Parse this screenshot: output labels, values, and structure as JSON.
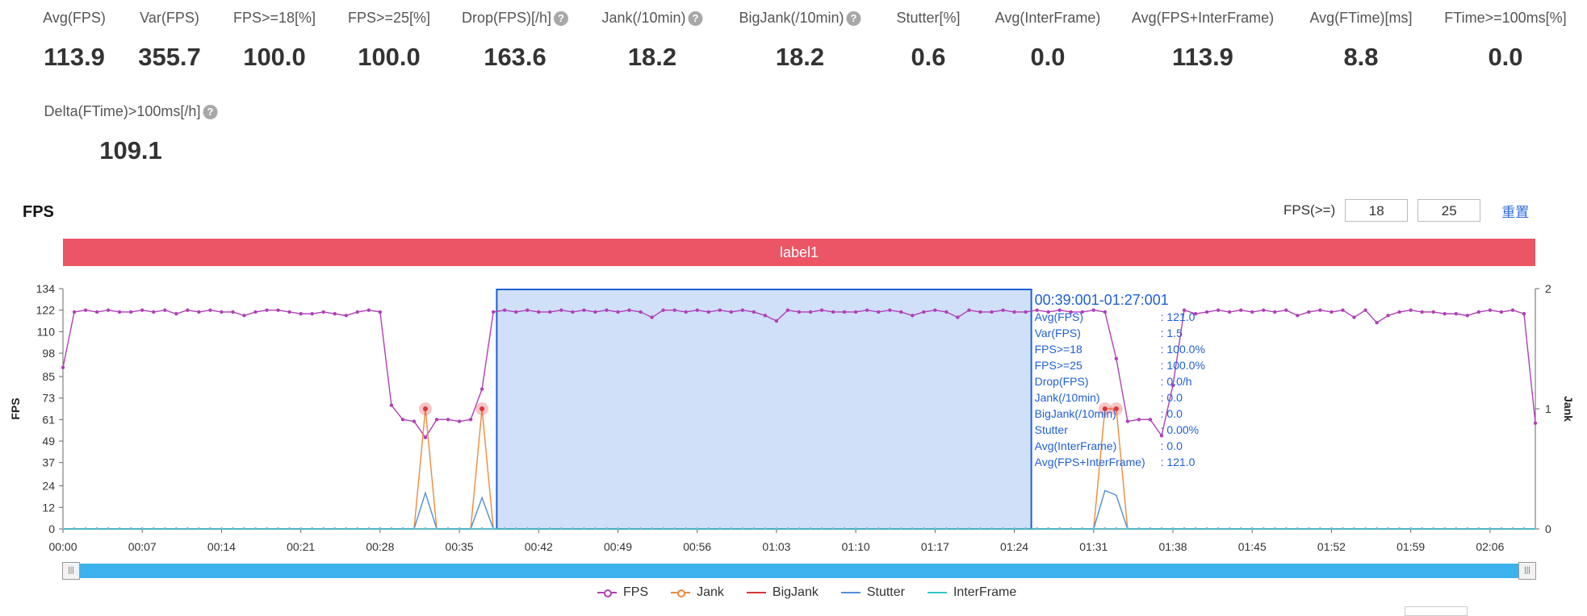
{
  "stats": [
    {
      "label": "Avg(FPS)",
      "value": "113.9",
      "help": false
    },
    {
      "label": "Var(FPS)",
      "value": "355.7",
      "help": false
    },
    {
      "label": "FPS>=18[%]",
      "value": "100.0",
      "help": false
    },
    {
      "label": "FPS>=25[%]",
      "value": "100.0",
      "help": false
    },
    {
      "label": "Drop(FPS)[/h]",
      "value": "163.6",
      "help": true
    },
    {
      "label": "Jank(/10min)",
      "value": "18.2",
      "help": true
    },
    {
      "label": "BigJank(/10min)",
      "value": "18.2",
      "help": true
    },
    {
      "label": "Stutter[%]",
      "value": "0.6",
      "help": false
    },
    {
      "label": "Avg(InterFrame)",
      "value": "0.0",
      "help": false
    },
    {
      "label": "Avg(FPS+InterFrame)",
      "value": "113.9",
      "help": false
    },
    {
      "label": "Avg(FTime)[ms]",
      "value": "8.8",
      "help": false
    },
    {
      "label": "FTime>=100ms[%]",
      "value": "0.0",
      "help": false
    },
    {
      "label": "Delta(FTime)>100ms[/h]",
      "value": "109.1",
      "help": true
    }
  ],
  "section_title": "FPS",
  "fps_threshold": {
    "label": "FPS(>=)",
    "value1": "18",
    "value2": "25",
    "reset": "重置"
  },
  "label_bar": "label1",
  "help_glyph": "?",
  "handle_glyph": "|||",
  "legend": [
    {
      "name": "FPS",
      "color": "#b040b8",
      "marker": "dot"
    },
    {
      "name": "Jank",
      "color": "#ee8a3a",
      "marker": "dot"
    },
    {
      "name": "BigJank",
      "color": "#d8363a",
      "marker": "line"
    },
    {
      "name": "Stutter",
      "color": "#4f8ed8",
      "marker": "line"
    },
    {
      "name": "InterFrame",
      "color": "#33c6c8",
      "marker": "line"
    }
  ],
  "chart_data": {
    "type": "line",
    "ylabel": "FPS",
    "y2label": "Jank",
    "ylim": [
      0,
      134
    ],
    "yticks": [
      0,
      12,
      24,
      37,
      49,
      61,
      73,
      85,
      98,
      110,
      122,
      134
    ],
    "y2lim": [
      0,
      2
    ],
    "y2ticks": [
      0,
      1,
      2
    ],
    "xlim": [
      0,
      130
    ],
    "xticks": [
      "00:00",
      "00:07",
      "00:14",
      "00:21",
      "00:28",
      "00:35",
      "00:42",
      "00:49",
      "00:56",
      "01:03",
      "01:10",
      "01:17",
      "01:24",
      "01:31",
      "01:38",
      "01:45",
      "01:52",
      "01:59",
      "02:06"
    ],
    "xtick_step_seconds": 7,
    "series": [
      {
        "name": "FPS",
        "axis": "left",
        "color": "#b040b8",
        "x": [
          0,
          1,
          2,
          3,
          4,
          5,
          6,
          7,
          8,
          9,
          10,
          11,
          12,
          13,
          14,
          15,
          16,
          17,
          18,
          19,
          20,
          21,
          22,
          23,
          24,
          25,
          26,
          27,
          28,
          29,
          30,
          31,
          32,
          33,
          34,
          35,
          36,
          37,
          38,
          39,
          40,
          41,
          42,
          43,
          44,
          45,
          46,
          47,
          48,
          49,
          50,
          51,
          52,
          53,
          54,
          55,
          56,
          57,
          58,
          59,
          60,
          61,
          62,
          63,
          64,
          65,
          66,
          67,
          68,
          69,
          70,
          71,
          72,
          73,
          74,
          75,
          76,
          77,
          78,
          79,
          80,
          81,
          82,
          83,
          84,
          85,
          86,
          87,
          88,
          89,
          90,
          91,
          92,
          93,
          94,
          95,
          96,
          97,
          98,
          99,
          100,
          101,
          102,
          103,
          104,
          105,
          106,
          107,
          108,
          109,
          110,
          111,
          112,
          113,
          114,
          115,
          116,
          117,
          118,
          119,
          120,
          121,
          122,
          123,
          124,
          125,
          126,
          127,
          128,
          129,
          130
        ],
        "y": [
          90,
          121,
          122,
          121,
          122,
          121,
          121,
          122,
          121,
          122,
          120,
          122,
          121,
          122,
          121,
          121,
          119,
          121,
          122,
          122,
          121,
          120,
          120,
          121,
          120,
          119,
          121,
          122,
          121,
          69,
          61,
          60,
          51,
          61,
          61,
          60,
          61,
          78,
          121,
          122,
          121,
          122,
          121,
          121,
          122,
          121,
          122,
          121,
          122,
          121,
          122,
          121,
          118,
          122,
          122,
          121,
          122,
          121,
          122,
          121,
          122,
          121,
          119,
          116,
          122,
          121,
          121,
          122,
          121,
          121,
          121,
          122,
          121,
          122,
          121,
          119,
          121,
          122,
          121,
          118,
          122,
          121,
          121,
          122,
          121,
          121,
          122,
          121,
          122,
          121,
          121,
          122,
          121,
          95,
          60,
          61,
          61,
          52,
          80,
          122,
          120,
          121,
          122,
          121,
          122,
          121,
          122,
          121,
          122,
          119,
          121,
          122,
          121,
          122,
          118,
          122,
          115,
          119,
          121,
          122,
          121,
          121,
          120,
          120,
          119,
          121,
          122,
          121,
          122,
          120,
          59
        ]
      },
      {
        "name": "Jank",
        "axis": "right",
        "color": "#ee8a3a",
        "x": [
          0,
          31,
          32,
          33,
          36,
          37,
          38,
          91,
          92,
          93,
          94,
          130
        ],
        "y": [
          0,
          0,
          1,
          0,
          0,
          1,
          0,
          0,
          1,
          1,
          0,
          0
        ],
        "highlight_x": [
          32,
          37,
          92,
          93
        ]
      },
      {
        "name": "BigJank",
        "axis": "right",
        "color": "#d8363a",
        "x": [
          0,
          130
        ],
        "y": [
          0,
          0
        ]
      },
      {
        "name": "Stutter",
        "axis": "right",
        "color": "#4f8ed8",
        "x": [
          0,
          31,
          32,
          33,
          36,
          37,
          38,
          91,
          92,
          93,
          94,
          130
        ],
        "y": [
          0,
          0,
          0.3,
          0,
          0,
          0.26,
          0,
          0,
          0.32,
          0.28,
          0,
          0
        ]
      },
      {
        "name": "InterFrame",
        "axis": "right",
        "color": "#33c6c8",
        "x": [
          0,
          130
        ],
        "y": [
          0,
          0
        ]
      }
    ],
    "selection": {
      "x0": 38.3,
      "x1": 85.5
    },
    "tooltip": {
      "title": "00:39:001-01:27:001",
      "rows": [
        [
          "Avg(FPS)",
          ": 121.0"
        ],
        [
          "Var(FPS)",
          ": 1.5"
        ],
        [
          "FPS>=18",
          ": 100.0%"
        ],
        [
          "FPS>=25",
          ": 100.0%"
        ],
        [
          "Drop(FPS)",
          ": 0.0/h"
        ],
        [
          "Jank(/10min)",
          ": 0.0"
        ],
        [
          "BigJank(/10min)",
          ": 0.0"
        ],
        [
          "Stutter",
          ": 0.00%"
        ],
        [
          "Avg(InterFrame)",
          ": 0.0"
        ],
        [
          "Avg(FPS+InterFrame)",
          ": 121.0"
        ]
      ]
    }
  }
}
